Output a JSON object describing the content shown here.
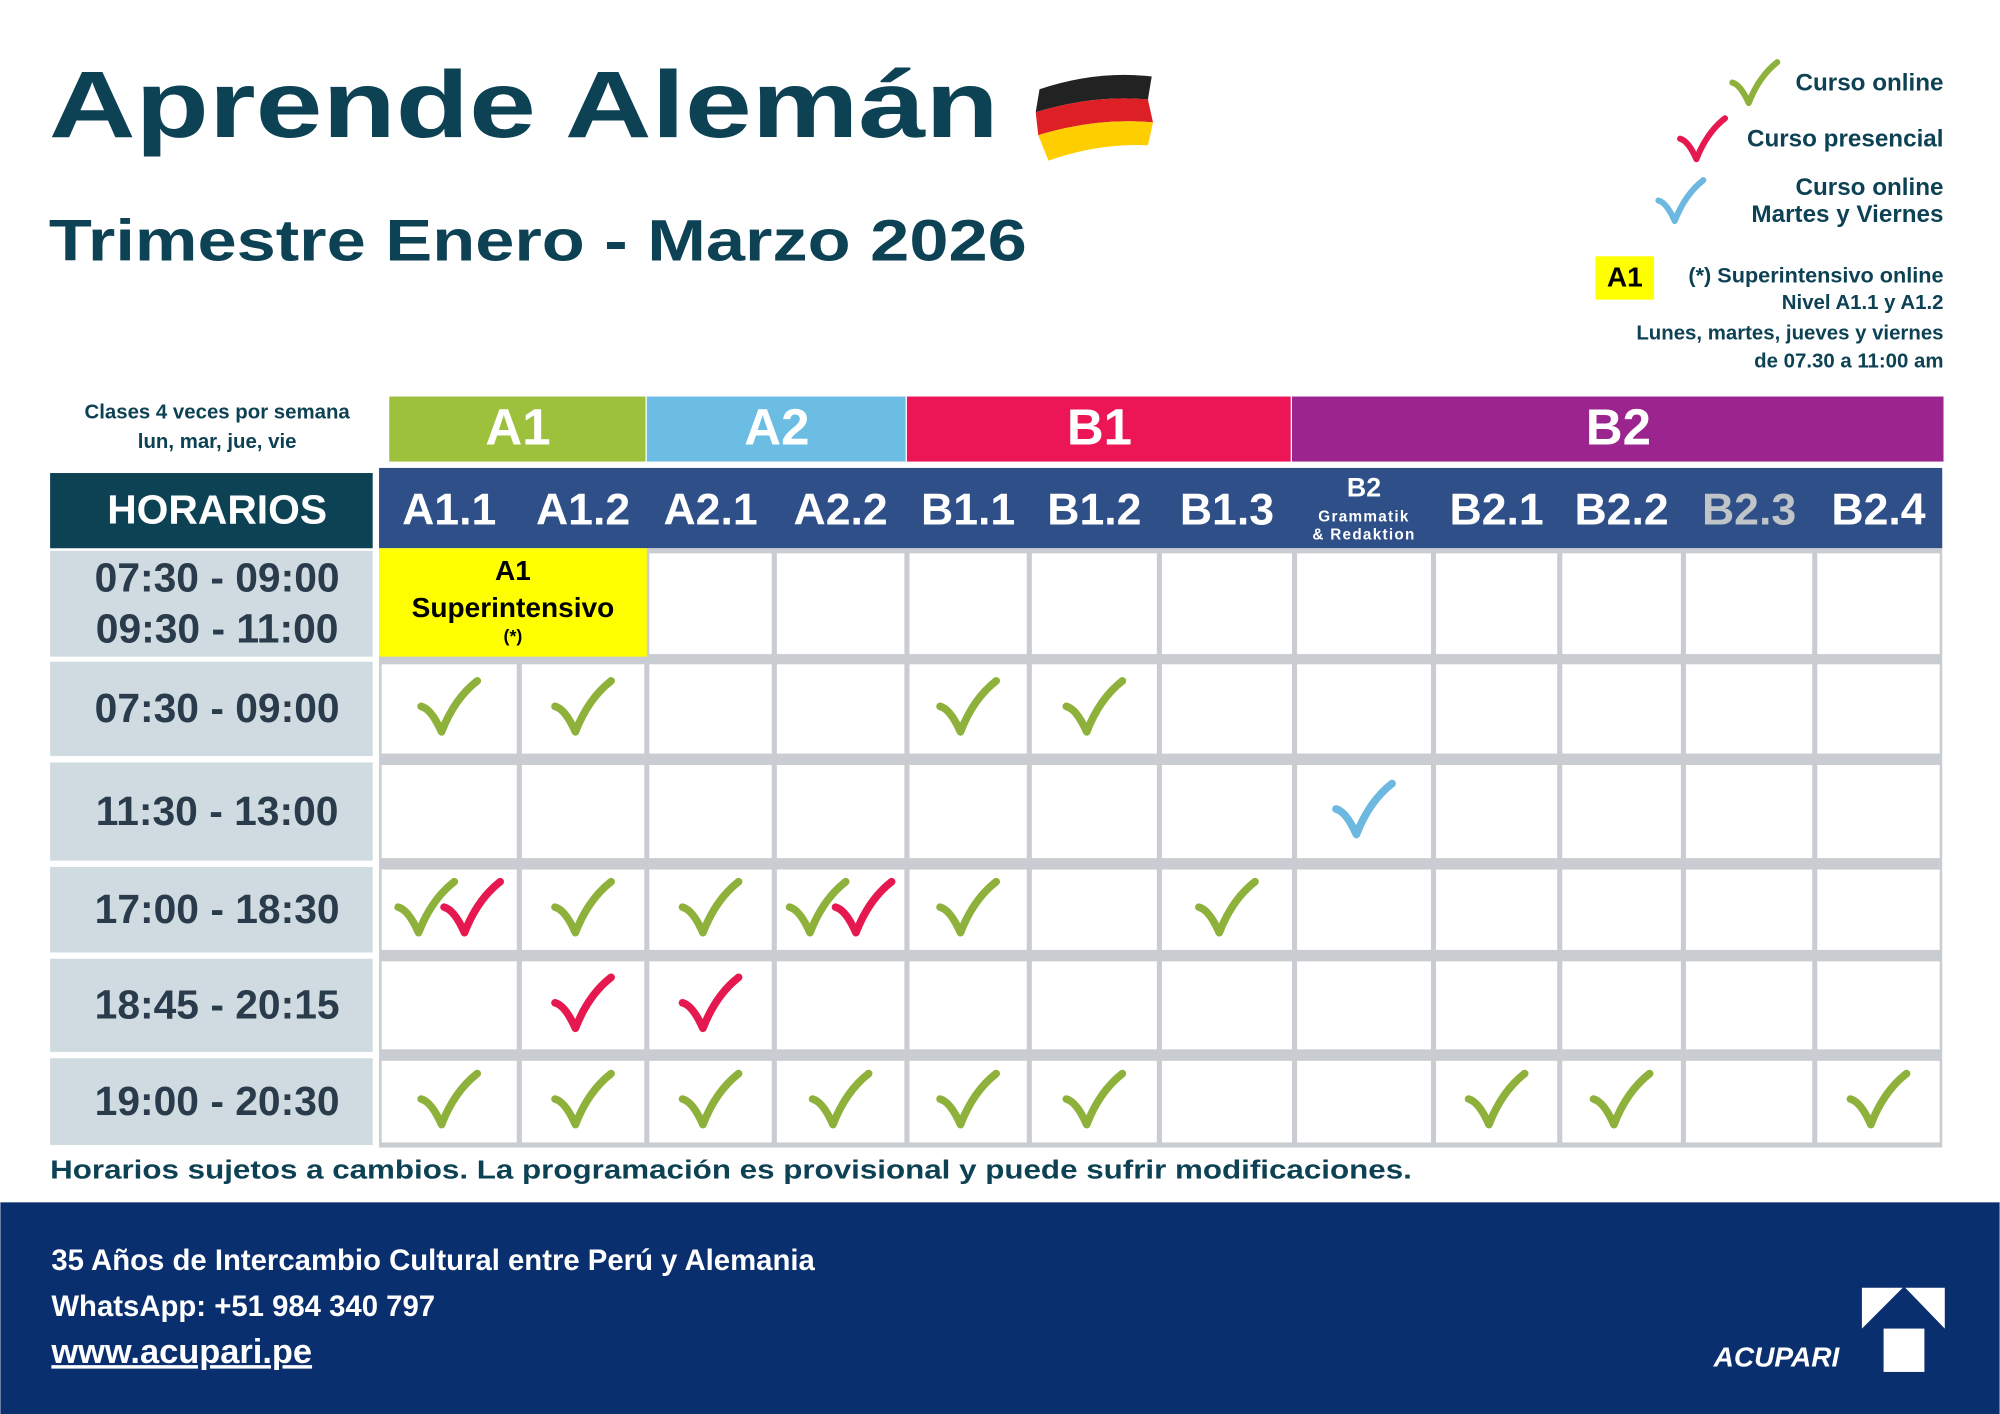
{
  "header": {
    "title": "Aprende Alemán",
    "subtitle": "Trimestre Enero - Marzo 2026"
  },
  "legend": {
    "items": [
      {
        "lines": [
          "Curso online"
        ],
        "color": "#8db13b"
      },
      {
        "lines": [
          "Curso presencial"
        ],
        "color": "#e5194f"
      },
      {
        "lines": [
          "Curso online",
          "Martes y Viernes"
        ],
        "color": "#6cb8e0"
      }
    ],
    "superintensivo": {
      "badge": "A1",
      "label": "(*) Superintensivo online",
      "lines": [
        "Nivel A1.1 y A1.2",
        "Lunes, martes, jueves y viernes",
        "de 07.30 a 11:00 am"
      ]
    }
  },
  "table": {
    "note": [
      "Clases 4 veces por semana",
      "lun, mar, jue, vie"
    ],
    "corner": "HORARIOS",
    "levels": [
      {
        "label": "A1",
        "color": "#9dc13c",
        "columns": [
          {
            "label": "A1.1"
          },
          {
            "label": "A1.2"
          }
        ]
      },
      {
        "label": "A2",
        "color": "#6bbde3",
        "columns": [
          {
            "label": "A2.1"
          },
          {
            "label": "A2.2"
          }
        ]
      },
      {
        "label": "B1",
        "color": "#ec1656",
        "columns": [
          {
            "label": "B1.1"
          },
          {
            "label": "B1.2"
          },
          {
            "label": "B1.3"
          }
        ]
      },
      {
        "label": "B2",
        "color": "#9b248e",
        "columns": [
          {
            "label": "B2",
            "sub": [
              "Grammatik",
              "& Redaktion"
            ]
          },
          {
            "label": "B2.1"
          },
          {
            "label": "B2.2"
          },
          {
            "label": "B2.3",
            "color": "#bfc4c9"
          },
          {
            "label": "B2.4"
          }
        ]
      }
    ],
    "rows": [
      {
        "times": [
          "07:30 - 09:00",
          "09:30 - 11:00"
        ],
        "special": {
          "title": "A1",
          "text": "Superintensivo",
          "mark": "(*)"
        },
        "cells": [
          [],
          [],
          [],
          [],
          [],
          [],
          [],
          [],
          [],
          [],
          [],
          []
        ]
      },
      {
        "times": [
          "07:30 - 09:00"
        ],
        "cells": [
          [
            "#8db13b"
          ],
          [
            "#8db13b"
          ],
          [],
          [],
          [
            "#8db13b"
          ],
          [
            "#8db13b"
          ],
          [],
          [],
          [],
          [],
          [],
          []
        ]
      },
      {
        "times": [
          "11:30 - 13:00"
        ],
        "cells": [
          [],
          [],
          [],
          [],
          [],
          [],
          [],
          [
            "#6cb8e0"
          ],
          [],
          [],
          [],
          []
        ]
      },
      {
        "times": [
          "17:00 - 18:30"
        ],
        "cells": [
          [
            "#8db13b",
            "#e5194f"
          ],
          [
            "#8db13b"
          ],
          [
            "#8db13b"
          ],
          [
            "#8db13b",
            "#e5194f"
          ],
          [
            "#8db13b"
          ],
          [],
          [
            "#8db13b"
          ],
          [],
          [],
          [],
          [],
          []
        ]
      },
      {
        "times": [
          "18:45 - 20:15"
        ],
        "cells": [
          [],
          [
            "#e5194f"
          ],
          [
            "#e5194f"
          ],
          [],
          [],
          [],
          [],
          [],
          [],
          [],
          [],
          []
        ]
      },
      {
        "times": [
          "19:00 - 20:30"
        ],
        "cells": [
          [
            "#8db13b"
          ],
          [
            "#8db13b"
          ],
          [
            "#8db13b"
          ],
          [
            "#8db13b"
          ],
          [
            "#8db13b"
          ],
          [
            "#8db13b"
          ],
          [],
          [],
          [
            "#8db13b"
          ],
          [
            "#8db13b"
          ],
          [],
          [
            "#8db13b"
          ]
        ]
      }
    ],
    "disclaimer": "Horarios sujetos a cambios. La programación es provisional y puede sufrir modificaciones."
  },
  "footer": {
    "lines": [
      "35 Años de Intercambio Cultural entre Perú y Alemania",
      "WhatsApp: +51 984 340 797"
    ],
    "website": "www.acupari.pe",
    "logo": "ACUPARI"
  }
}
